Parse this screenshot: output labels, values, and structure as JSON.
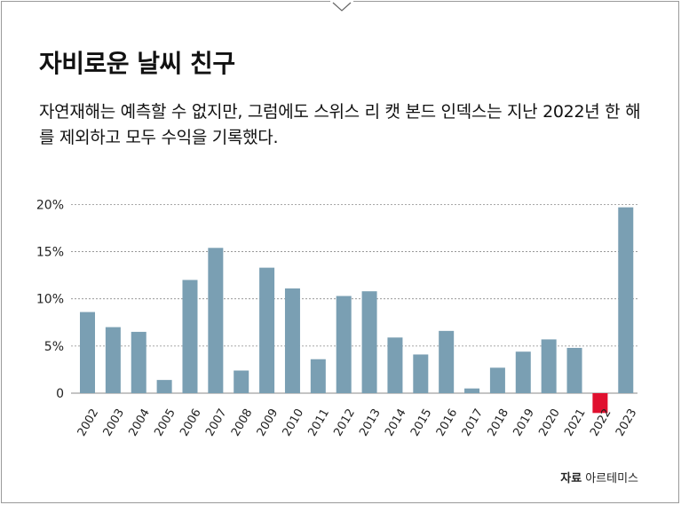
{
  "header": {
    "title": "자비로운 날씨 친구",
    "subtitle": "자연재해는 예측할 수 없지만, 그럼에도 스위스 리 캣 본드 인덱스는 지난 2022년 한 해를 제외하고 모두 수익을 기록했다."
  },
  "source": {
    "label": "자료",
    "value": "아르테미스"
  },
  "colors": {
    "positive": "#7a9fb3",
    "negative": "#e0102f",
    "grid": "#8a8a8a"
  },
  "chart_data": {
    "type": "bar",
    "categories": [
      "2002",
      "2003",
      "2004",
      "2005",
      "2006",
      "2007",
      "2008",
      "2009",
      "2010",
      "2011",
      "2012",
      "2013",
      "2014",
      "2015",
      "2016",
      "2017",
      "2018",
      "2019",
      "2020",
      "2021",
      "2022",
      "2023"
    ],
    "values": [
      8.6,
      7.0,
      6.5,
      1.4,
      12.0,
      15.4,
      2.4,
      13.3,
      11.1,
      3.6,
      10.3,
      10.8,
      5.9,
      4.1,
      6.6,
      0.5,
      2.7,
      4.4,
      5.7,
      4.8,
      -2.1,
      19.7
    ],
    "yticks": [
      "0",
      "5%",
      "10%",
      "15%",
      "20%"
    ],
    "ytick_values": [
      0,
      5,
      10,
      15,
      20
    ],
    "ylim": [
      -2.5,
      20
    ],
    "grid": true
  }
}
